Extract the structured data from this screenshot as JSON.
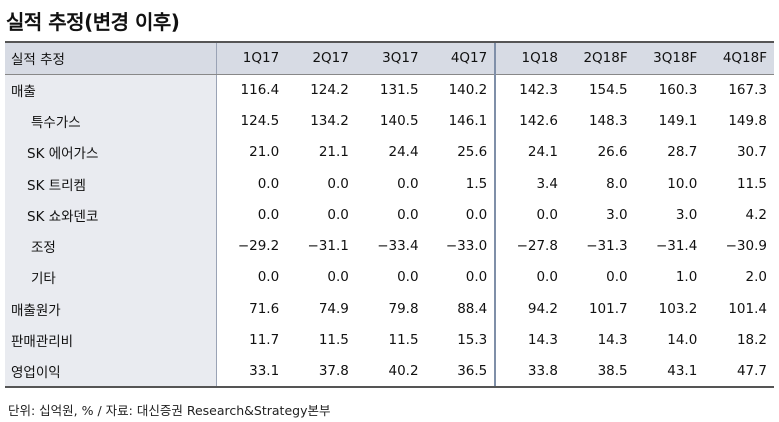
{
  "title": "실적 추정(변경 이후)",
  "table": {
    "header": [
      "실적 추정",
      "1Q17",
      "2Q17",
      "3Q17",
      "4Q17",
      "1Q18",
      "2Q18F",
      "3Q18F",
      "4Q18F"
    ],
    "rows": [
      {
        "label": "매출",
        "indent": 0,
        "values": [
          "116.4",
          "124.2",
          "131.5",
          "140.2",
          "142.3",
          "154.5",
          "160.3",
          "167.3"
        ]
      },
      {
        "label": "특수가스",
        "indent": 2,
        "values": [
          "124.5",
          "134.2",
          "140.5",
          "146.1",
          "142.6",
          "148.3",
          "149.1",
          "149.8"
        ]
      },
      {
        "label": "SK 에어가스",
        "indent": 1,
        "values": [
          "21.0",
          "21.1",
          "24.4",
          "25.6",
          "24.1",
          "26.6",
          "28.7",
          "30.7"
        ]
      },
      {
        "label": "SK 트리켐",
        "indent": 1,
        "values": [
          "0.0",
          "0.0",
          "0.0",
          "1.5",
          "3.4",
          "8.0",
          "10.0",
          "11.5"
        ]
      },
      {
        "label": "SK 쇼와덴코",
        "indent": 1,
        "values": [
          "0.0",
          "0.0",
          "0.0",
          "0.0",
          "0.0",
          "3.0",
          "3.0",
          "4.2"
        ]
      },
      {
        "label": "조정",
        "indent": 2,
        "values": [
          "−29.2",
          "−31.1",
          "−33.4",
          "−33.0",
          "−27.8",
          "−31.3",
          "−31.4",
          "−30.9"
        ]
      },
      {
        "label": "기타",
        "indent": 2,
        "values": [
          "0.0",
          "0.0",
          "0.0",
          "0.0",
          "0.0",
          "0.0",
          "1.0",
          "2.0"
        ]
      },
      {
        "label": "매출원가",
        "indent": 0,
        "values": [
          "71.6",
          "74.9",
          "79.8",
          "88.4",
          "94.2",
          "101.7",
          "103.2",
          "101.4"
        ]
      },
      {
        "label": "판매관리비",
        "indent": 0,
        "values": [
          "11.7",
          "11.5",
          "11.5",
          "15.3",
          "14.3",
          "14.3",
          "14.0",
          "18.2"
        ]
      },
      {
        "label": "영업이익",
        "indent": 0,
        "values": [
          "33.1",
          "37.8",
          "40.2",
          "36.5",
          "33.8",
          "38.5",
          "43.1",
          "47.7"
        ]
      }
    ]
  },
  "source": "단위: 십억원, % / 자료: 대신증권 Research&Strategy본부"
}
